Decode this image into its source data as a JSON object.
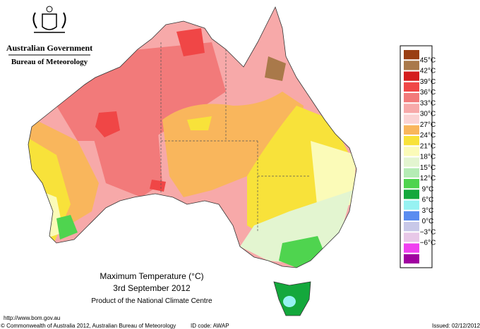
{
  "header": {
    "government": "Australian Government",
    "bureau": "Bureau of Meteorology"
  },
  "legend": {
    "labels": [
      "45°C",
      "42°C",
      "39°C",
      "36°C",
      "33°C",
      "30°C",
      "27°C",
      "24°C",
      "21°C",
      "18°C",
      "15°C",
      "12°C",
      "9°C",
      "6°C",
      "3°C",
      "0°C",
      "−3°C",
      "−6°C"
    ],
    "colors": [
      "#9a3f14",
      "#a9794a",
      "#d41e1e",
      "#f04646",
      "#f27a7a",
      "#f7a9a9",
      "#fbd3d3",
      "#f9b65c",
      "#f8e23a",
      "#fbfbb8",
      "#e3f5d0",
      "#b4ecb4",
      "#4fd44f",
      "#14a83c",
      "#96f2f2",
      "#5a8cf0",
      "#c8c8e8",
      "#e8c8e8",
      "#f040f0",
      "#a000a0"
    ]
  },
  "map": {
    "title": "Maximum Temperature (°C)",
    "date": "3rd September 2012",
    "product": "Product of the National Climate Centre"
  },
  "footer": {
    "url": "http://www.bom.gov.au",
    "copyright": "© Commonwealth of Australia 2012, Australian Bureau of Meteorology",
    "id_code": "ID code: AWAP",
    "issued": "Issued: 02/12/2012"
  }
}
